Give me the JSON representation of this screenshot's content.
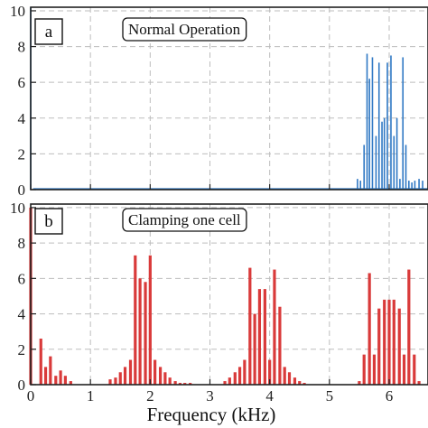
{
  "chart_data": [
    {
      "panel_label": "a",
      "title": "Normal Operation",
      "type": "bar",
      "color": "#2f78c4",
      "xlim": [
        0,
        6.65
      ],
      "ylim": [
        0,
        10.2
      ],
      "xticks": [
        "0",
        "1",
        "2",
        "3",
        "4",
        "5",
        "6"
      ],
      "yticks": [
        "0",
        "2",
        "4",
        "6",
        "8",
        "10"
      ],
      "grid": true,
      "x": [
        0.0,
        5.47,
        5.52,
        5.58,
        5.63,
        5.67,
        5.72,
        5.78,
        5.83,
        5.88,
        5.92,
        5.97,
        6.03,
        6.08,
        6.13,
        6.18,
        6.23,
        6.28,
        6.33,
        6.38,
        6.43,
        6.5,
        6.56
      ],
      "values": [
        10.2,
        0.6,
        0.5,
        2.5,
        7.6,
        6.2,
        7.4,
        3.0,
        7.1,
        3.8,
        4.0,
        7.1,
        7.5,
        3.0,
        4.0,
        0.6,
        7.4,
        2.5,
        0.5,
        0.4,
        0.5,
        0.6,
        0.5
      ]
    },
    {
      "panel_label": "b",
      "title": "Clamping one cell",
      "type": "bar",
      "color": "#d93a3a",
      "xlim": [
        0,
        6.65
      ],
      "ylim": [
        0,
        10.2
      ],
      "xticks": [
        "0",
        "1",
        "2",
        "3",
        "4",
        "5",
        "6"
      ],
      "yticks": [
        "0",
        "2",
        "4",
        "6",
        "8",
        "10"
      ],
      "grid": true,
      "xlabel": "Frequency (kHz)",
      "x": [
        0.0,
        0.17,
        0.25,
        0.33,
        0.42,
        0.5,
        0.58,
        0.67,
        1.33,
        1.42,
        1.5,
        1.58,
        1.67,
        1.75,
        1.83,
        1.92,
        2.0,
        2.08,
        2.17,
        2.25,
        2.33,
        2.42,
        2.5,
        2.58,
        2.67,
        3.25,
        3.33,
        3.42,
        3.5,
        3.58,
        3.67,
        3.75,
        3.83,
        3.92,
        4.0,
        4.08,
        4.17,
        4.25,
        4.33,
        4.42,
        4.5,
        4.58,
        5.5,
        5.58,
        5.67,
        5.75,
        5.83,
        5.92,
        6.0,
        6.08,
        6.17,
        6.25,
        6.33,
        6.42,
        6.5
      ],
      "values": [
        10.0,
        2.6,
        1.0,
        1.6,
        0.5,
        0.8,
        0.5,
        0.2,
        0.3,
        0.4,
        0.7,
        1.0,
        1.4,
        7.3,
        6.0,
        5.8,
        7.3,
        1.4,
        1.0,
        0.7,
        0.4,
        0.2,
        0.1,
        0.1,
        0.1,
        0.2,
        0.4,
        0.7,
        1.0,
        1.4,
        6.6,
        4.0,
        5.4,
        5.4,
        1.4,
        6.5,
        4.4,
        1.0,
        0.7,
        0.4,
        0.2,
        0.1,
        0.2,
        1.7,
        6.3,
        1.7,
        4.3,
        4.8,
        4.8,
        4.8,
        4.3,
        1.7,
        6.5,
        1.7,
        0.2
      ]
    }
  ]
}
